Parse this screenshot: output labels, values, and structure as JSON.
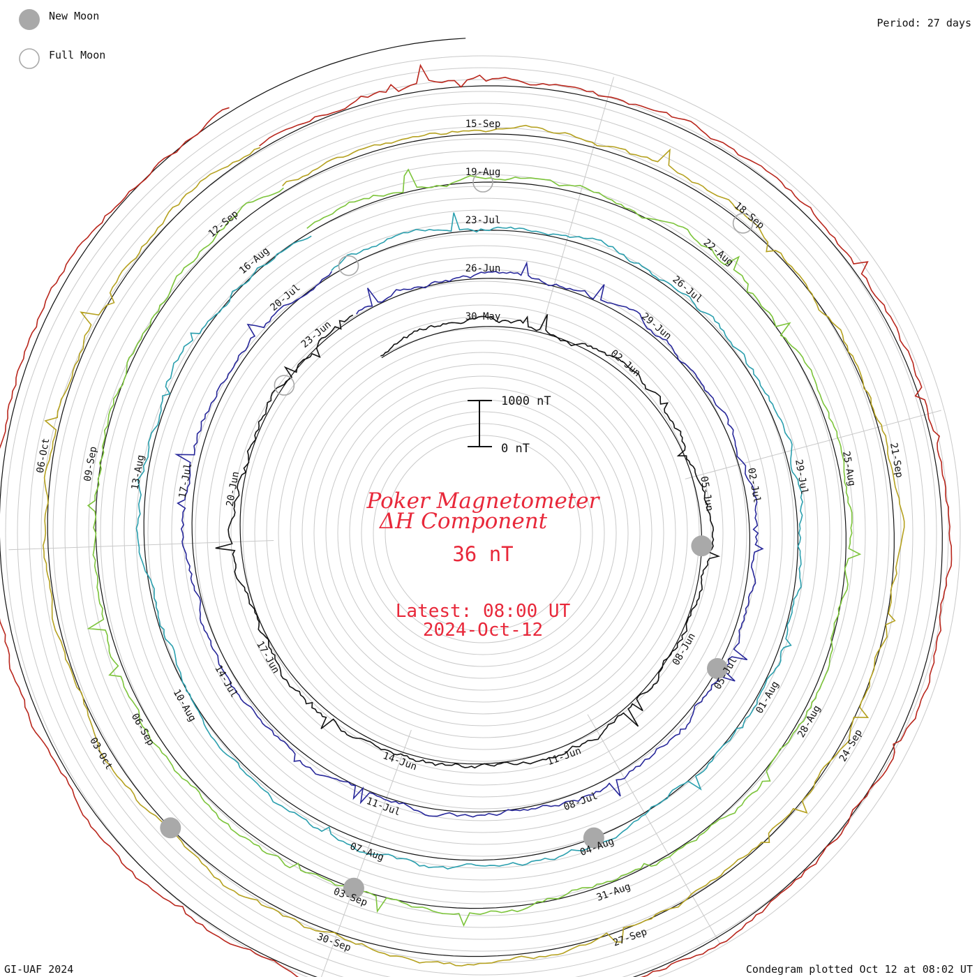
{
  "corner": {
    "period": "Period: 27 days",
    "credit": "GI-UAF 2024",
    "plotted": "Condegram plotted Oct 12 at 08:02 UT"
  },
  "legend": {
    "new_moon": "New Moon",
    "full_moon": "Full Moon"
  },
  "center": {
    "title_line1": "Poker Magnetometer",
    "title_line2": "ΔH Component",
    "value": "36 nT",
    "latest": "Latest: 08:00 UT",
    "date": "2024-Oct-12"
  },
  "scale": {
    "top": "1000 nT",
    "bottom": "0 nT"
  },
  "chart_data": {
    "type": "line",
    "subtype": "condegram-spiral",
    "title": "Poker Magnetometer ΔH Component",
    "period_days": 27,
    "latest_value_nT": 36,
    "latest_time": "2024-Oct-12 08:00 UT",
    "scale_bar_nT": [
      0,
      1000
    ],
    "series": [
      {
        "cycle": 1,
        "color": "#111111",
        "start": "2024-05-29",
        "end": "2024-06-25"
      },
      {
        "cycle": 2,
        "color": "#27279a",
        "start": "2024-06-25",
        "end": "2024-07-22"
      },
      {
        "cycle": 3,
        "color": "#2a9fae",
        "start": "2024-07-22",
        "end": "2024-08-18"
      },
      {
        "cycle": 4,
        "color": "#7cc43a",
        "start": "2024-08-18",
        "end": "2024-09-14"
      },
      {
        "cycle": 5,
        "color": "#b5a11f",
        "start": "2024-09-14",
        "end": "2024-10-11"
      },
      {
        "cycle": 6,
        "color": "#b9261c",
        "start": "2024-10-11",
        "end": "2024-10-12"
      }
    ],
    "date_labels": [
      {
        "text": "30-May",
        "angle": 0,
        "ring": 0
      },
      {
        "text": "02-Jun",
        "angle": 40,
        "ring": 0
      },
      {
        "text": "05-Jun",
        "angle": 80,
        "ring": 0
      },
      {
        "text": "08-Jun",
        "angle": 120,
        "ring": 0
      },
      {
        "text": "11-Jun",
        "angle": 160,
        "ring": 0
      },
      {
        "text": "14-Jun",
        "angle": 200,
        "ring": 0
      },
      {
        "text": "17-Jun",
        "angle": 240,
        "ring": 0
      },
      {
        "text": "20-Jun",
        "angle": 280,
        "ring": 0
      },
      {
        "text": "23-Jun",
        "angle": 320,
        "ring": 0
      },
      {
        "text": "26-Jun",
        "angle": 0,
        "ring": 1
      },
      {
        "text": "29-Jun",
        "angle": 40,
        "ring": 1
      },
      {
        "text": "02-Jul",
        "angle": 80,
        "ring": 1
      },
      {
        "text": "05-Jul",
        "angle": 120,
        "ring": 1
      },
      {
        "text": "08-Jul",
        "angle": 160,
        "ring": 1
      },
      {
        "text": "11-Jul",
        "angle": 200,
        "ring": 1
      },
      {
        "text": "14-Jul",
        "angle": 240,
        "ring": 1
      },
      {
        "text": "17-Jul",
        "angle": 280,
        "ring": 1
      },
      {
        "text": "20-Jul",
        "angle": 320,
        "ring": 1
      },
      {
        "text": "23-Jul",
        "angle": 0,
        "ring": 2
      },
      {
        "text": "26-Jul",
        "angle": 40,
        "ring": 2
      },
      {
        "text": "29-Jul",
        "angle": 80,
        "ring": 2
      },
      {
        "text": "01-Aug",
        "angle": 120,
        "ring": 2
      },
      {
        "text": "04-Aug",
        "angle": 160,
        "ring": 2
      },
      {
        "text": "07-Aug",
        "angle": 200,
        "ring": 2
      },
      {
        "text": "10-Aug",
        "angle": 240,
        "ring": 2
      },
      {
        "text": "13-Aug",
        "angle": 280,
        "ring": 2
      },
      {
        "text": "16-Aug",
        "angle": 320,
        "ring": 2
      },
      {
        "text": "19-Aug",
        "angle": 0,
        "ring": 3
      },
      {
        "text": "22-Aug",
        "angle": 40,
        "ring": 3
      },
      {
        "text": "25-Aug",
        "angle": 80,
        "ring": 3
      },
      {
        "text": "28-Aug",
        "angle": 120,
        "ring": 3
      },
      {
        "text": "31-Aug",
        "angle": 160,
        "ring": 3
      },
      {
        "text": "03-Sep",
        "angle": 200,
        "ring": 3
      },
      {
        "text": "06-Sep",
        "angle": 240,
        "ring": 3
      },
      {
        "text": "09-Sep",
        "angle": 280,
        "ring": 3
      },
      {
        "text": "12-Sep",
        "angle": 320,
        "ring": 3
      },
      {
        "text": "15-Sep",
        "angle": 0,
        "ring": 4
      },
      {
        "text": "18-Sep",
        "angle": 40,
        "ring": 4
      },
      {
        "text": "21-Sep",
        "angle": 80,
        "ring": 4
      },
      {
        "text": "24-Sep",
        "angle": 120,
        "ring": 4
      },
      {
        "text": "27-Sep",
        "angle": 160,
        "ring": 4
      },
      {
        "text": "30-Sep",
        "angle": 200,
        "ring": 4
      },
      {
        "text": "03-Oct",
        "angle": 240,
        "ring": 4
      },
      {
        "text": "06-Oct",
        "angle": 280,
        "ring": 4
      }
    ],
    "moons": [
      {
        "phase": "new",
        "date": "2024-06-06"
      },
      {
        "phase": "full",
        "date": "2024-06-22"
      },
      {
        "phase": "new",
        "date": "2024-07-05"
      },
      {
        "phase": "full",
        "date": "2024-07-21"
      },
      {
        "phase": "new",
        "date": "2024-08-04"
      },
      {
        "phase": "full",
        "date": "2024-08-19"
      },
      {
        "phase": "new",
        "date": "2024-09-03"
      },
      {
        "phase": "full",
        "date": "2024-09-18"
      },
      {
        "phase": "new",
        "date": "2024-10-02"
      }
    ]
  }
}
